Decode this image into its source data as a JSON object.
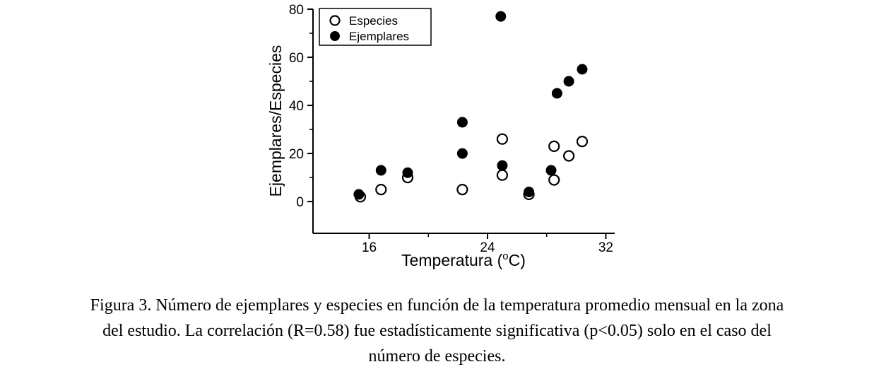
{
  "figure": {
    "caption_lines": [
      "Figura 3. Número de ejemplares y especies en función de la temperatura promedio mensual en la zona",
      "del estudio. La correlación (R=0.58) fue estadísticamente significativa (p<0.05) solo en el caso del",
      "número de especies."
    ]
  },
  "chart_data": {
    "type": "scatter",
    "title": "",
    "xlabel": {
      "text": "Temperatura (",
      "sup": "o",
      "end": "C)"
    },
    "ylabel": "Ejemplares/Especies",
    "xlim": [
      12.2,
      32.6
    ],
    "ylim": [
      -13.2,
      80
    ],
    "xticks": [
      16,
      24,
      32
    ],
    "xminor": [
      20,
      28
    ],
    "yticks": [
      0,
      20,
      40,
      60,
      80
    ],
    "yminor": [
      10,
      30,
      50,
      70
    ],
    "grid": false,
    "legend_position": "top-left-inside",
    "series": [
      {
        "name": "Especies",
        "marker": "open",
        "points": [
          [
            15.4,
            2
          ],
          [
            16.8,
            5
          ],
          [
            18.6,
            10
          ],
          [
            22.3,
            5
          ],
          [
            25,
            26
          ],
          [
            25,
            11
          ],
          [
            26.8,
            3
          ],
          [
            28.5,
            23
          ],
          [
            28.5,
            9
          ],
          [
            29.5,
            19
          ],
          [
            30.4,
            25
          ]
        ]
      },
      {
        "name": "Ejemplares",
        "marker": "filled",
        "points": [
          [
            15.3,
            3
          ],
          [
            16.8,
            13
          ],
          [
            18.6,
            12
          ],
          [
            22.3,
            20
          ],
          [
            22.3,
            33
          ],
          [
            24.9,
            77
          ],
          [
            25,
            15
          ],
          [
            26.8,
            4
          ],
          [
            28.7,
            45
          ],
          [
            28.3,
            13
          ],
          [
            29.5,
            50
          ],
          [
            30.4,
            55
          ]
        ]
      }
    ]
  }
}
